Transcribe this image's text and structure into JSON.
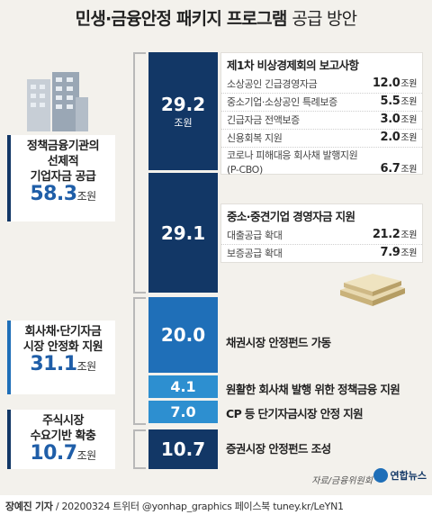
{
  "title": {
    "main": "민생·금융안정 패키지 프로그램",
    "sub": "공급 방안"
  },
  "groups": [
    {
      "label_lines": [
        "정책금융기관의",
        "선제적",
        "기업자금 공급"
      ],
      "value": "58.3",
      "unit": "조원"
    },
    {
      "label_lines": [
        "회사채·단기자금",
        "시장 안정화 지원"
      ],
      "value": "31.1",
      "unit": "조원"
    },
    {
      "label_lines": [
        "주식시장",
        "수요기반 확충"
      ],
      "value": "10.7",
      "unit": "조원"
    }
  ],
  "panels": {
    "first": {
      "title": "제1차 비상경제회의 보고사항",
      "rows": [
        {
          "label": "소상공인 긴급경영자금",
          "value": "12.0",
          "unit": "조원"
        },
        {
          "label": "중소기업·소상공인 특례보증",
          "value": "5.5",
          "unit": "조원"
        },
        {
          "label": "긴급자금 전액보증",
          "value": "3.0",
          "unit": "조원"
        },
        {
          "label": "신용회복 지원",
          "value": "2.0",
          "unit": "조원"
        },
        {
          "label": "코로나 피해대응 회사채 발행지원(P-CBO)",
          "value": "6.7",
          "unit": "조원"
        }
      ]
    },
    "second": {
      "title": "중소·중견기업 경영자금 지원",
      "rows": [
        {
          "label": "대출공급 확대",
          "value": "21.2",
          "unit": "조원"
        },
        {
          "label": "보증공급 확대",
          "value": "7.9",
          "unit": "조원"
        }
      ]
    }
  },
  "chart_data": {
    "type": "bar",
    "unit": "조원",
    "categories": [
      "제1차 비상경제회의 보고사항",
      "중소·중견기업 경영자금 지원",
      "채권시장 안정펀드 가동",
      "원활한 회사채 발행 위한 정책금융 지원",
      "CP 등 단기자금시장 안정 지원",
      "증권시장 안정펀드 조성"
    ],
    "values": [
      29.2,
      29.1,
      20.0,
      4.1,
      7.0,
      10.7
    ],
    "value_labels": [
      "29.2",
      "29.1",
      "20.0",
      "4.1",
      "7.0",
      "10.7"
    ],
    "colors": [
      "#123766",
      "#123766",
      "#1f6fb8",
      "#2d8fd0",
      "#2d8fd0",
      "#123766"
    ]
  },
  "source": "자료/금융위원회",
  "logo": "연합뉴스",
  "footer": {
    "author": "장예진 기자",
    "rest": " / 20200324 트위터 @yonhap_graphics 페이스북 tuney.kr/LeYN1"
  }
}
